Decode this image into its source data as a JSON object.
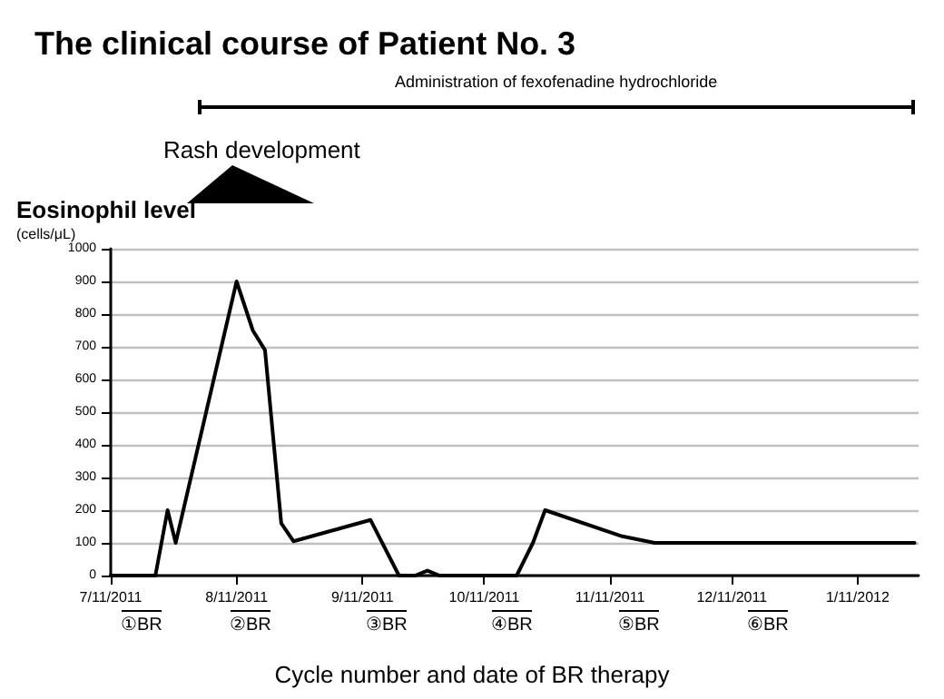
{
  "chart_data": {
    "type": "line",
    "title": "The clinical course of Patient No. 3",
    "ylabel": "Eosinophil level\n(cells/μL)",
    "xlabel": "Cycle number and date of BR therapy",
    "series": [
      {
        "color": "#000000",
        "x": [
          "2011-07-11",
          "2011-07-22",
          "2011-07-25",
          "2011-07-27",
          "2011-08-11",
          "2011-08-15",
          "2011-08-18",
          "2011-08-22",
          "2011-08-25",
          "2011-09-13",
          "2011-09-20",
          "2011-09-24",
          "2011-09-27",
          "2011-09-30",
          "2011-10-19",
          "2011-10-23",
          "2011-10-26",
          "2011-11-14",
          "2011-11-22",
          "2012-01-25"
        ],
        "values": [
          0,
          0,
          200,
          100,
          900,
          750,
          690,
          160,
          105,
          170,
          0,
          0,
          15,
          0,
          0,
          100,
          200,
          120,
          100,
          100
        ]
      }
    ],
    "xlim": [
      "2011-07-11",
      "2012-01-26"
    ],
    "xticks": [
      {
        "value": "2011-07-11",
        "label": "7/11/2011"
      },
      {
        "value": "2011-08-11",
        "label": "8/11/2011"
      },
      {
        "value": "2011-09-11",
        "label": "9/11/2011"
      },
      {
        "value": "2011-10-11",
        "label": "10/11/2011"
      },
      {
        "value": "2011-11-11",
        "label": "11/11/2011"
      },
      {
        "value": "2011-12-11",
        "label": "12/11/2011"
      },
      {
        "value": "2012-01-11",
        "label": "1/11/2012"
      }
    ],
    "ylim": [
      0,
      1000
    ],
    "yticks": [
      0,
      100,
      200,
      300,
      400,
      500,
      600,
      700,
      800,
      900,
      1000
    ],
    "grid": "y",
    "marker": "none",
    "line_style": "solid",
    "annotations": [
      "Administration of fexofenadine hydrochloride",
      "Rash development",
      "①BR",
      "②BR",
      "③BR",
      "④BR",
      "⑤BR",
      "⑥BR"
    ]
  }
}
